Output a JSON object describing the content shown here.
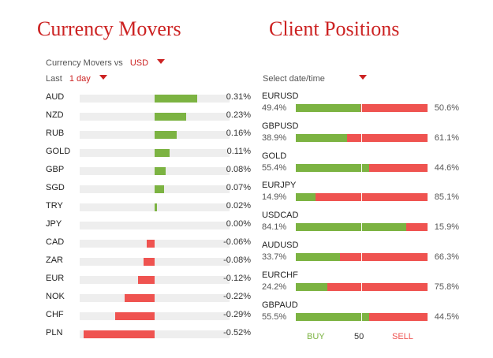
{
  "movers": {
    "title": "Currency Movers",
    "vs_label": "Currency Movers vs",
    "vs_value": "USD",
    "period_label": "Last",
    "period_value": "1 day",
    "rows": [
      {
        "code": "AUD",
        "value": 0.31,
        "label": "0.31%"
      },
      {
        "code": "NZD",
        "value": 0.23,
        "label": "0.23%"
      },
      {
        "code": "RUB",
        "value": 0.16,
        "label": "0.16%"
      },
      {
        "code": "GOLD",
        "value": 0.11,
        "label": "0.11%"
      },
      {
        "code": "GBP",
        "value": 0.08,
        "label": "0.08%"
      },
      {
        "code": "SGD",
        "value": 0.07,
        "label": "0.07%"
      },
      {
        "code": "TRY",
        "value": 0.02,
        "label": "0.02%"
      },
      {
        "code": "JPY",
        "value": 0.0,
        "label": "0.00%"
      },
      {
        "code": "CAD",
        "value": -0.06,
        "label": "-0.06%"
      },
      {
        "code": "ZAR",
        "value": -0.08,
        "label": "-0.08%"
      },
      {
        "code": "EUR",
        "value": -0.12,
        "label": "-0.12%"
      },
      {
        "code": "NOK",
        "value": -0.22,
        "label": "-0.22%"
      },
      {
        "code": "CHF",
        "value": -0.29,
        "label": "-0.29%"
      },
      {
        "code": "PLN",
        "value": -0.52,
        "label": "-0.52%"
      }
    ]
  },
  "positions": {
    "title": "Client Positions",
    "date_label": "Select date/time",
    "rows": [
      {
        "pair": "EURUSD",
        "buy": 49.4,
        "buy_label": "49.4%",
        "sell_label": "50.6%"
      },
      {
        "pair": "GBPUSD",
        "buy": 38.9,
        "buy_label": "38.9%",
        "sell_label": "61.1%"
      },
      {
        "pair": "GOLD",
        "buy": 55.4,
        "buy_label": "55.4%",
        "sell_label": "44.6%"
      },
      {
        "pair": "EURJPY",
        "buy": 14.9,
        "buy_label": "14.9%",
        "sell_label": "85.1%"
      },
      {
        "pair": "USDCAD",
        "buy": 84.1,
        "buy_label": "84.1%",
        "sell_label": "15.9%"
      },
      {
        "pair": "AUDUSD",
        "buy": 33.7,
        "buy_label": "33.7%",
        "sell_label": "66.3%"
      },
      {
        "pair": "EURCHF",
        "buy": 24.2,
        "buy_label": "24.2%",
        "sell_label": "75.8%"
      },
      {
        "pair": "GBPAUD",
        "buy": 55.5,
        "buy_label": "55.5%",
        "sell_label": "44.5%"
      }
    ],
    "legend": {
      "buy": "BUY",
      "mid": "50",
      "sell": "SELL"
    }
  },
  "colors": {
    "positive": "#7cb342",
    "negative": "#ef5350",
    "accent": "#cc2222"
  }
}
